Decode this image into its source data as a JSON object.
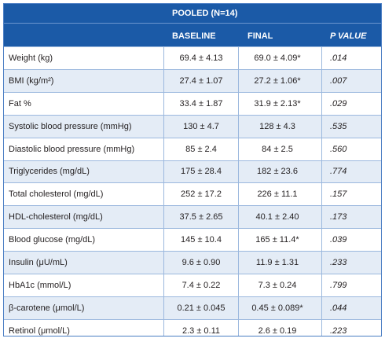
{
  "header": {
    "group": "POOLED (N=14)",
    "col_baseline": "BASELINE",
    "col_final": "FINAL",
    "col_p": "P VALUE"
  },
  "rows": [
    {
      "label": "Weight (kg)",
      "baseline": "69.4 ± 4.13",
      "final": "69.0 ± 4.09*",
      "p": ".014"
    },
    {
      "label": "BMI (kg/m²)",
      "baseline": "27.4 ± 1.07",
      "final": "27.2 ± 1.06*",
      "p": ".007"
    },
    {
      "label": "Fat %",
      "baseline": "33.4 ± 1.87",
      "final": "31.9 ± 2.13*",
      "p": ".029"
    },
    {
      "label": "Systolic blood pressure (mmHg)",
      "baseline": "130 ± 4.7",
      "final": "128 ± 4.3",
      "p": ".535"
    },
    {
      "label": "Diastolic blood pressure (mmHg)",
      "baseline": "85 ± 2.4",
      "final": "84 ± 2.5",
      "p": ".560"
    },
    {
      "label": "Triglycerides (mg/dL)",
      "baseline": "175 ± 28.4",
      "final": "182 ± 23.6",
      "p": ".774"
    },
    {
      "label": "Total cholesterol (mg/dL)",
      "baseline": "252 ± 17.2",
      "final": "226 ± 11.1",
      "p": ".157"
    },
    {
      "label": "HDL-cholesterol (mg/dL)",
      "baseline": "37.5 ± 2.65",
      "final": "40.1 ± 2.40",
      "p": ".173"
    },
    {
      "label": "Blood glucose (mg/dL)",
      "baseline": "145 ± 10.4",
      "final": "165 ± 11.4*",
      "p": ".039"
    },
    {
      "label": "Insulin (μU/mL)",
      "baseline": "9.6 ± 0.90",
      "final": "11.9 ± 1.31",
      "p": ".233"
    },
    {
      "label": "HbA1c (mmol/L)",
      "baseline": "7.4 ± 0.22",
      "final": "7.3 ± 0.24",
      "p": ".799"
    },
    {
      "label": "β-carotene (μmol/L)",
      "baseline": "0.21 ± 0.045",
      "final": "0.45 ± 0.089*",
      "p": ".044"
    },
    {
      "label": "Retinol (μmol/L)",
      "baseline": "2.3 ± 0.11",
      "final": "2.6 ± 0.19",
      "p": ".223"
    }
  ],
  "colors": {
    "header_bg": "#1b5aa7",
    "row_shade": "#e4ecf6",
    "rule": "#9bb8de"
  }
}
